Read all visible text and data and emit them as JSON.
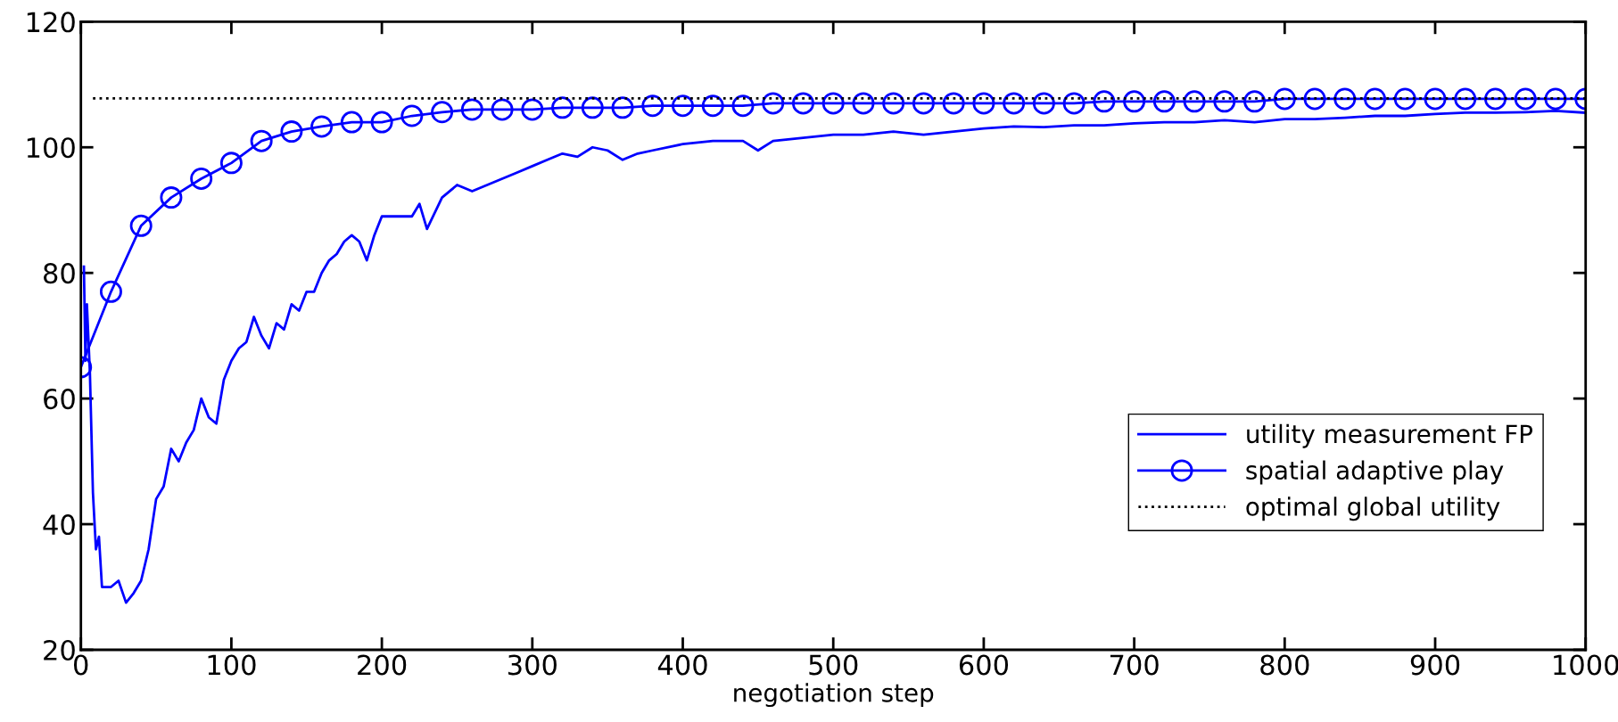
{
  "chart_data": {
    "type": "line",
    "xlabel": "negotiation step",
    "xlim": [
      0,
      1000
    ],
    "xticks": [
      0,
      100,
      200,
      300,
      400,
      500,
      600,
      700,
      800,
      900,
      1000
    ],
    "ylim": [
      20,
      120
    ],
    "yticks": [
      20,
      40,
      60,
      80,
      100,
      120
    ],
    "grid": false,
    "legend": "bottom right",
    "series": [
      {
        "name": "utility measurement FP",
        "color": "#0000ff",
        "marker": "none",
        "line_style": "solid",
        "x": [
          2,
          3,
          4,
          6,
          8,
          10,
          12,
          14,
          20,
          25,
          30,
          35,
          40,
          45,
          50,
          55,
          60,
          65,
          70,
          75,
          80,
          85,
          90,
          95,
          100,
          105,
          110,
          115,
          120,
          125,
          130,
          135,
          140,
          145,
          150,
          155,
          160,
          165,
          170,
          175,
          180,
          185,
          190,
          195,
          200,
          210,
          220,
          225,
          230,
          240,
          250,
          260,
          270,
          280,
          290,
          300,
          310,
          320,
          330,
          340,
          350,
          360,
          370,
          380,
          400,
          420,
          440,
          450,
          460,
          480,
          500,
          520,
          540,
          560,
          580,
          600,
          620,
          640,
          660,
          680,
          700,
          720,
          740,
          760,
          780,
          800,
          820,
          840,
          860,
          880,
          900,
          920,
          940,
          960,
          980,
          1000
        ],
        "values": [
          81,
          66,
          75,
          64,
          45,
          36,
          38,
          30,
          30,
          31,
          27.5,
          29,
          31,
          36,
          44,
          46,
          52,
          50,
          53,
          55,
          60,
          57,
          56,
          63,
          66,
          68,
          69,
          73,
          70,
          68,
          72,
          71,
          75,
          74,
          77,
          77,
          80,
          82,
          83,
          85,
          86,
          85,
          82,
          86,
          89,
          89,
          89,
          91,
          87,
          92,
          94,
          93,
          94,
          95,
          96,
          97,
          98,
          99,
          98.5,
          100,
          99.5,
          98,
          99,
          99.5,
          100.5,
          101,
          101,
          99.5,
          101,
          101.5,
          102,
          102,
          102.5,
          102,
          102.5,
          103,
          103.3,
          103.2,
          103.5,
          103.5,
          103.8,
          104,
          104,
          104.3,
          104,
          104.5,
          104.5,
          104.7,
          105,
          105,
          105.3,
          105.5,
          105.5,
          105.6,
          105.8,
          105.5
        ]
      },
      {
        "name": "spatial adaptive play",
        "color": "#0000ff",
        "marker": "circle",
        "line_style": "solid",
        "x": [
          0,
          20,
          40,
          60,
          80,
          100,
          120,
          140,
          160,
          180,
          200,
          220,
          240,
          260,
          280,
          300,
          320,
          340,
          360,
          380,
          400,
          420,
          440,
          460,
          480,
          500,
          520,
          540,
          560,
          580,
          600,
          620,
          640,
          660,
          680,
          700,
          720,
          740,
          760,
          780,
          800,
          820,
          840,
          860,
          880,
          900,
          920,
          940,
          960,
          980,
          1000
        ],
        "values": [
          65,
          77,
          87.5,
          92,
          95,
          97.5,
          101,
          102.5,
          103.3,
          104,
          104,
          105,
          105.6,
          106,
          106,
          106,
          106.3,
          106.3,
          106.3,
          106.6,
          106.6,
          106.6,
          106.6,
          107,
          107,
          107,
          107,
          107,
          107,
          107,
          107,
          107,
          107,
          107,
          107.3,
          107.3,
          107.3,
          107.3,
          107.3,
          107.3,
          107.7,
          107.7,
          107.7,
          107.7,
          107.7,
          107.7,
          107.7,
          107.7,
          107.7,
          107.7,
          107.7
        ]
      }
    ],
    "ref_lines": [
      {
        "axis": "y",
        "value": 107.8,
        "label": "optimal global utility",
        "color": "#000000",
        "line_style": "dotted"
      }
    ]
  }
}
